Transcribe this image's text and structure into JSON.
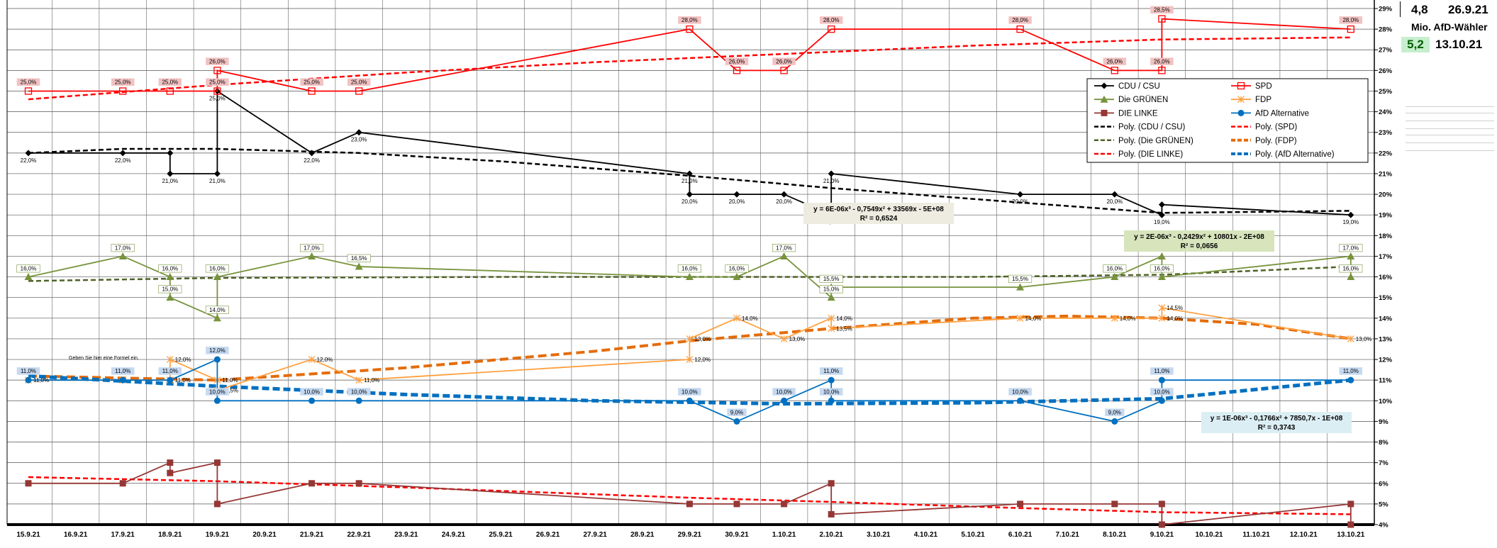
{
  "chart_data": {
    "type": "line",
    "categories": [
      "15.9.21",
      "16.9.21",
      "17.9.21",
      "18.9.21",
      "19.9.21",
      "20.9.21",
      "21.9.21",
      "22.9.21",
      "23.9.21",
      "24.9.21",
      "25.9.21",
      "26.9.21",
      "27.9.21",
      "28.9.21",
      "29.9.21",
      "30.9.21",
      "1.10.21",
      "2.10.21",
      "3.10.21",
      "4.10.21",
      "5.10.21",
      "6.10.21",
      "7.10.21",
      "8.10.21",
      "9.10.21",
      "10.10.21",
      "11.10.21",
      "12.10.21",
      "13.10.21"
    ],
    "y_ticks": [
      "4%",
      "5%",
      "6%",
      "7%",
      "8%",
      "9%",
      "10%",
      "11%",
      "12%",
      "13%",
      "14%",
      "15%",
      "16%",
      "17%",
      "18%",
      "19%",
      "20%",
      "21%",
      "22%",
      "23%",
      "24%",
      "25%",
      "26%",
      "27%",
      "28%",
      "29%"
    ],
    "ylim": [
      4,
      29
    ],
    "grid": true,
    "legend_position": "upper-right",
    "series": [
      {
        "name": "CDU / CSU",
        "color": "#000000",
        "marker": "diamond",
        "points": [
          [
            0,
            22
          ],
          [
            2,
            22
          ],
          [
            3,
            22
          ],
          [
            3,
            21
          ],
          [
            4,
            21
          ],
          [
            4,
            25
          ],
          [
            6,
            22
          ],
          [
            7,
            23
          ],
          [
            14,
            21
          ],
          [
            14,
            20
          ],
          [
            15,
            20
          ],
          [
            16,
            20
          ],
          [
            17,
            19
          ],
          [
            17,
            21
          ],
          [
            21,
            20
          ],
          [
            23,
            20
          ],
          [
            24,
            19
          ],
          [
            24,
            19.5
          ],
          [
            28,
            19
          ]
        ],
        "labels": [
          [
            0,
            22,
            "22,0%"
          ],
          [
            2,
            22,
            "22,0%"
          ],
          [
            3,
            21,
            "21,0%"
          ],
          [
            4,
            21,
            "21,0%"
          ],
          [
            4,
            25,
            "25,0%"
          ],
          [
            6,
            22,
            "22,0%"
          ],
          [
            7,
            23,
            "23,0%"
          ],
          [
            14,
            21,
            "21,0%"
          ],
          [
            14,
            20,
            "20,0%"
          ],
          [
            15,
            20,
            "20,0%"
          ],
          [
            16,
            20,
            "20,0%"
          ],
          [
            17,
            19,
            "19,0%"
          ],
          [
            17,
            21,
            "21,0%"
          ],
          [
            21,
            20,
            "20,0%"
          ],
          [
            23,
            20,
            "20,0%"
          ],
          [
            24,
            19,
            "19,0%"
          ],
          [
            28,
            19,
            "19,0%"
          ]
        ]
      },
      {
        "name": "SPD",
        "color": "#ff0000",
        "marker": "square-open",
        "points": [
          [
            0,
            25
          ],
          [
            2,
            25
          ],
          [
            3,
            25
          ],
          [
            4,
            25
          ],
          [
            4,
            26
          ],
          [
            6,
            25
          ],
          [
            7,
            25
          ],
          [
            14,
            28
          ],
          [
            15,
            26
          ],
          [
            16,
            26
          ],
          [
            17,
            28
          ],
          [
            21,
            28
          ],
          [
            23,
            26
          ],
          [
            24,
            26
          ],
          [
            24,
            28.5
          ],
          [
            28,
            28
          ]
        ],
        "labels": [
          [
            0,
            25,
            "25,0%"
          ],
          [
            2,
            25,
            "25,0%"
          ],
          [
            3,
            25,
            "25,0%"
          ],
          [
            4,
            25,
            "25,0%"
          ],
          [
            4,
            26,
            "26,0%"
          ],
          [
            6,
            25,
            "25,0%"
          ],
          [
            7,
            25,
            "25,0%"
          ],
          [
            14,
            28,
            "28,0%"
          ],
          [
            15,
            26,
            "26,0%"
          ],
          [
            16,
            26,
            "26,0%"
          ],
          [
            17,
            28,
            "28,0%"
          ],
          [
            21,
            28,
            "28,0%"
          ],
          [
            23,
            26,
            "26,0%"
          ],
          [
            24,
            26,
            "26,0%"
          ],
          [
            24,
            28.5,
            "28,5%"
          ],
          [
            28,
            28,
            "28,0%"
          ]
        ]
      },
      {
        "name": "Die GRÜNEN",
        "color": "#77933c",
        "marker": "triangle",
        "points": [
          [
            0,
            16
          ],
          [
            2,
            17
          ],
          [
            3,
            16
          ],
          [
            3,
            15
          ],
          [
            4,
            14
          ],
          [
            4,
            16
          ],
          [
            6,
            17
          ],
          [
            7,
            16.5
          ],
          [
            14,
            16
          ],
          [
            15,
            16
          ],
          [
            16,
            17
          ],
          [
            17,
            15
          ],
          [
            17,
            15.5
          ],
          [
            21,
            15.5
          ],
          [
            23,
            16
          ],
          [
            24,
            17
          ],
          [
            24,
            16
          ],
          [
            28,
            17
          ],
          [
            28,
            16
          ]
        ],
        "labels": [
          [
            0,
            16,
            "16,0%"
          ],
          [
            2,
            17,
            "17,0%"
          ],
          [
            3,
            16,
            "16,0%"
          ],
          [
            3,
            15,
            "15,0%"
          ],
          [
            4,
            14,
            "14,0%"
          ],
          [
            4,
            16,
            "16,0%"
          ],
          [
            6,
            17,
            "17,0%"
          ],
          [
            7,
            16.5,
            "16,5%"
          ],
          [
            14,
            16,
            "16,0%"
          ],
          [
            15,
            16,
            "16,0%"
          ],
          [
            16,
            17,
            "17,0%"
          ],
          [
            17,
            15,
            "15,0%"
          ],
          [
            17,
            15.5,
            "15,5%"
          ],
          [
            21,
            15.5,
            "15,5%"
          ],
          [
            23,
            16,
            "16,0%"
          ],
          [
            24,
            16,
            "16,0%"
          ],
          [
            28,
            17,
            "17,0%"
          ],
          [
            28,
            16,
            "16,0%"
          ]
        ]
      },
      {
        "name": "FDP",
        "color": "#ffa040",
        "marker": "star",
        "points": [
          [
            0,
            11
          ],
          [
            2,
            11
          ],
          [
            3,
            11
          ],
          [
            3,
            12
          ],
          [
            4,
            11
          ],
          [
            4,
            10.5
          ],
          [
            6,
            12
          ],
          [
            7,
            11
          ],
          [
            14,
            12
          ],
          [
            14,
            13
          ],
          [
            15,
            14
          ],
          [
            16,
            13
          ],
          [
            17,
            14
          ],
          [
            17,
            13.5
          ],
          [
            21,
            14
          ],
          [
            23,
            14
          ],
          [
            24,
            14
          ],
          [
            24,
            14.5
          ],
          [
            28,
            13
          ]
        ],
        "labels": [
          [
            0,
            11,
            "11,0%"
          ],
          [
            3,
            12,
            "12,0%"
          ],
          [
            3,
            11,
            "11,0%"
          ],
          [
            4,
            10.5,
            "10,5%"
          ],
          [
            4,
            11,
            "11,0%"
          ],
          [
            6,
            12,
            "12,0%"
          ],
          [
            7,
            11,
            "11,0%"
          ],
          [
            14,
            12,
            "12,0%"
          ],
          [
            14,
            13,
            "13,0%"
          ],
          [
            15,
            14,
            "14,0%"
          ],
          [
            16,
            13,
            "13,0%"
          ],
          [
            17,
            14,
            "14,0%"
          ],
          [
            17,
            13.5,
            "13,5%"
          ],
          [
            21,
            14,
            "14,0%"
          ],
          [
            23,
            14,
            "14,0%"
          ],
          [
            24,
            14.5,
            "14,5%"
          ],
          [
            24,
            14,
            "14,0%"
          ],
          [
            28,
            13,
            "13,0%"
          ]
        ]
      },
      {
        "name": "DIE LINKE",
        "color": "#953735",
        "marker": "square",
        "points": [
          [
            0,
            6
          ],
          [
            2,
            6
          ],
          [
            3,
            7
          ],
          [
            3,
            6.5
          ],
          [
            4,
            7
          ],
          [
            4,
            5
          ],
          [
            6,
            6
          ],
          [
            7,
            6
          ],
          [
            14,
            5
          ],
          [
            15,
            5
          ],
          [
            16,
            5
          ],
          [
            17,
            6
          ],
          [
            17,
            4.5
          ],
          [
            21,
            5
          ],
          [
            23,
            5
          ],
          [
            24,
            5
          ],
          [
            24,
            4
          ],
          [
            28,
            5
          ],
          [
            28,
            4
          ]
        ],
        "labels": []
      },
      {
        "name": "AfD Alternative",
        "color": "#0070c0",
        "marker": "circle",
        "points": [
          [
            0,
            11
          ],
          [
            2,
            11
          ],
          [
            3,
            11
          ],
          [
            4,
            12
          ],
          [
            4,
            10
          ],
          [
            6,
            10
          ],
          [
            7,
            10
          ],
          [
            14,
            10
          ],
          [
            15,
            9
          ],
          [
            16,
            10
          ],
          [
            17,
            11
          ],
          [
            17,
            10
          ],
          [
            21,
            10
          ],
          [
            23,
            9
          ],
          [
            24,
            10
          ],
          [
            24,
            11
          ],
          [
            28,
            11
          ]
        ],
        "labels": [
          [
            0,
            11,
            "11,0%"
          ],
          [
            2,
            11,
            "11,0%"
          ],
          [
            3,
            11,
            "11,0%"
          ],
          [
            4,
            12,
            "12,0%"
          ],
          [
            4,
            10,
            "10,0%"
          ],
          [
            6,
            10,
            "10,0%"
          ],
          [
            7,
            10,
            "10,0%"
          ],
          [
            14,
            10,
            "10,0%"
          ],
          [
            15,
            9,
            "9,0%"
          ],
          [
            16,
            10,
            "10,0%"
          ],
          [
            17,
            11,
            "11,0%"
          ],
          [
            17,
            10,
            "10,0%"
          ],
          [
            21,
            10,
            "10,0%"
          ],
          [
            23,
            9,
            "9,0%"
          ],
          [
            24,
            11,
            "11,0%"
          ],
          [
            24,
            10,
            "10,0%"
          ],
          [
            28,
            11,
            "11,0%"
          ]
        ]
      }
    ],
    "trendlines": [
      {
        "name": "Poly. (CDU / CSU)",
        "color": "#000000",
        "width": 2.5,
        "dash": "7,4",
        "points": [
          [
            0,
            22
          ],
          [
            2,
            22.2
          ],
          [
            4,
            22.2
          ],
          [
            7,
            22
          ],
          [
            10,
            21.6
          ],
          [
            14,
            20.9
          ],
          [
            17,
            20.3
          ],
          [
            21,
            19.6
          ],
          [
            24,
            19.1
          ],
          [
            28,
            19.2
          ]
        ]
      },
      {
        "name": "Poly. (SPD)",
        "color": "#ff0000",
        "width": 2.5,
        "dash": "7,4",
        "points": [
          [
            0,
            24.6
          ],
          [
            4,
            25.3
          ],
          [
            8,
            25.9
          ],
          [
            12,
            26.4
          ],
          [
            16,
            26.8
          ],
          [
            20,
            27.2
          ],
          [
            24,
            27.5
          ],
          [
            28,
            27.6
          ]
        ]
      },
      {
        "name": "Poly. (Die GRÜNEN)",
        "color": "#4f6228",
        "width": 2.5,
        "dash": "7,4",
        "points": [
          [
            0,
            15.8
          ],
          [
            4,
            15.95
          ],
          [
            10,
            16
          ],
          [
            16,
            16
          ],
          [
            20,
            16
          ],
          [
            24,
            16.1
          ],
          [
            28,
            16.5
          ]
        ]
      },
      {
        "name": "Poly. (FDP)",
        "color": "#e46c0a",
        "width": 4,
        "dash": "12,6",
        "points": [
          [
            0,
            11.2
          ],
          [
            4,
            11
          ],
          [
            8,
            11.6
          ],
          [
            12,
            12.4
          ],
          [
            14,
            12.9
          ],
          [
            17,
            13.5
          ],
          [
            20,
            14
          ],
          [
            22,
            14.1
          ],
          [
            24,
            14
          ],
          [
            26,
            13.7
          ],
          [
            28,
            13
          ]
        ]
      },
      {
        "name": "Poly. (DIE LINKE)",
        "color": "#ff0000",
        "width": 2.5,
        "dash": "7,4",
        "points": [
          [
            0,
            6.3
          ],
          [
            4,
            6.1
          ],
          [
            8,
            5.8
          ],
          [
            14,
            5.3
          ],
          [
            17,
            5.1
          ],
          [
            21,
            4.8
          ],
          [
            24,
            4.6
          ],
          [
            28,
            4.5
          ]
        ]
      },
      {
        "name": "Poly. (AfD Alternative)",
        "color": "#0070c0",
        "width": 5,
        "dash": "10,5",
        "points": [
          [
            0,
            11.2
          ],
          [
            4,
            10.7
          ],
          [
            8,
            10.3
          ],
          [
            12,
            10
          ],
          [
            16,
            9.85
          ],
          [
            20,
            9.9
          ],
          [
            24,
            10.1
          ],
          [
            28,
            11
          ]
        ]
      }
    ],
    "equations": [
      {
        "line1": "y = 6E-06x³ - 0,7549x² + 33569x - 5E+08",
        "line2": "R² = 0,6524",
        "bg": "#eeece1"
      },
      {
        "line1": "y = 2E-06x³ - 0,2429x² + 10801x - 2E+08",
        "line2": "R² = 0,0656",
        "bg": "#d7e4bc"
      },
      {
        "line1": "y = 1E-06x³ - 0,1766x² + 7850,7x - 1E+08",
        "line2": "R² = 0,3743",
        "bg": "#dbeef3"
      }
    ],
    "note": "Geben Sie hier eine Formel ein."
  },
  "side": {
    "value1": "4,8",
    "date1": "26.9.21",
    "caption": "Mio. AfD-Wähler",
    "value2": "5,2",
    "date2": "13.10.21"
  }
}
